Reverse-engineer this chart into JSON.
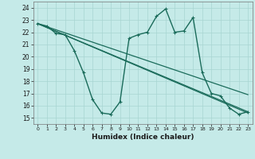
{
  "xlabel": "Humidex (Indice chaleur)",
  "xlim": [
    -0.5,
    23.5
  ],
  "ylim": [
    14.5,
    24.5
  ],
  "yticks": [
    15,
    16,
    17,
    18,
    19,
    20,
    21,
    22,
    23,
    24
  ],
  "xticks": [
    0,
    1,
    2,
    3,
    4,
    5,
    6,
    7,
    8,
    9,
    10,
    11,
    12,
    13,
    14,
    15,
    16,
    17,
    18,
    19,
    20,
    21,
    22,
    23
  ],
  "bg_color": "#c5eae8",
  "grid_color": "#a8d5d2",
  "line_color": "#1a6b5a",
  "line_data": [
    {
      "x": [
        0,
        1,
        2,
        3,
        4,
        5,
        6,
        7,
        8,
        9,
        10,
        11,
        12,
        13,
        14,
        15,
        16,
        17,
        18,
        19,
        20,
        21,
        22,
        23
      ],
      "y": [
        22.7,
        22.5,
        21.9,
        21.8,
        20.5,
        18.7,
        16.5,
        15.4,
        15.3,
        16.3,
        21.5,
        21.8,
        22.0,
        23.3,
        23.9,
        22.0,
        22.1,
        23.2,
        18.7,
        17.0,
        16.8,
        15.8,
        15.3,
        15.5
      ],
      "marker": "+",
      "markersize": 3,
      "lw": 1.0
    },
    {
      "x": [
        0,
        23
      ],
      "y": [
        22.7,
        15.5
      ],
      "marker": null,
      "lw": 0.9
    },
    {
      "x": [
        0,
        23
      ],
      "y": [
        22.7,
        16.9
      ],
      "marker": null,
      "lw": 0.9
    },
    {
      "x": [
        0,
        23
      ],
      "y": [
        22.7,
        15.4
      ],
      "marker": null,
      "lw": 0.9
    }
  ]
}
